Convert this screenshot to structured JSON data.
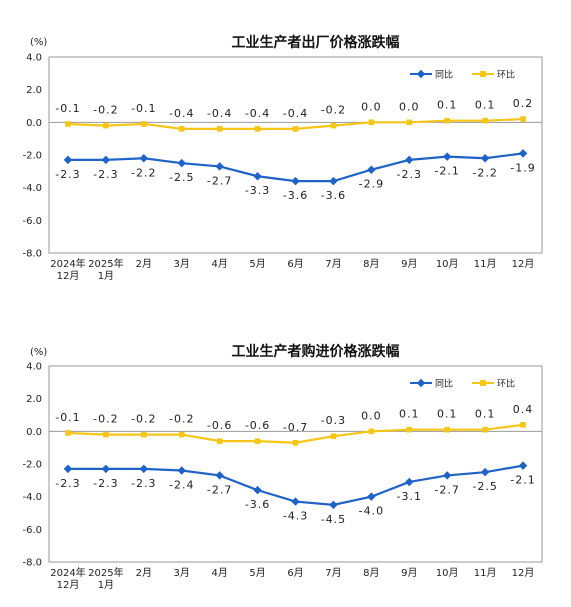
{
  "chart_data": [
    {
      "type": "line",
      "title": "工业生产者出厂价格涨跌幅",
      "unit_label": "(%)",
      "ylim": [
        -8.0,
        4.0
      ],
      "yticks": [
        "4.0",
        "2.0",
        "0.0",
        "-2.0",
        "-4.0",
        "-6.0",
        "-8.0"
      ],
      "ytick_values": [
        4,
        2,
        0,
        -2,
        -4,
        -6,
        -8
      ],
      "categories": [
        [
          "2024年",
          "12月"
        ],
        [
          "2025年",
          "1月"
        ],
        [
          "2月"
        ],
        [
          "3月"
        ],
        [
          "4月"
        ],
        [
          "5月"
        ],
        [
          "6月"
        ],
        [
          "7月"
        ],
        [
          "8月"
        ],
        [
          "9月"
        ],
        [
          "10月"
        ],
        [
          "11月"
        ],
        [
          "12月"
        ]
      ],
      "legend_position": "top-right",
      "series": [
        {
          "name": "同比",
          "color": "#1f63c6",
          "values": [
            -2.3,
            -2.3,
            -2.2,
            -2.5,
            -2.7,
            -3.3,
            -3.6,
            -3.6,
            -2.9,
            -2.3,
            -2.1,
            -2.2,
            -1.9
          ],
          "labels": [
            "-2.3",
            "-2.3",
            "-2.2",
            "-2.5",
            "-2.7",
            "-3.3",
            "-3.6",
            "-3.6",
            "-2.9",
            "-2.3",
            "-2.1",
            "-2.2",
            "-1.9"
          ]
        },
        {
          "name": "环比",
          "color": "#f5c518",
          "values": [
            -0.1,
            -0.2,
            -0.1,
            -0.4,
            -0.4,
            -0.4,
            -0.4,
            -0.2,
            0.0,
            0.0,
            0.1,
            0.1,
            0.2
          ],
          "labels": [
            "-0.1",
            "-0.2",
            "-0.1",
            "-0.4",
            "-0.4",
            "-0.4",
            "-0.4",
            "-0.2",
            "0.0",
            "0.0",
            "0.1",
            "0.1",
            "0.2"
          ]
        }
      ]
    },
    {
      "type": "line",
      "title": "工业生产者购进价格涨跌幅",
      "unit_label": "(%)",
      "ylim": [
        -8.0,
        4.0
      ],
      "yticks": [
        "4.0",
        "2.0",
        "0.0",
        "-2.0",
        "-4.0",
        "-6.0",
        "-8.0"
      ],
      "ytick_values": [
        4,
        2,
        0,
        -2,
        -4,
        -6,
        -8
      ],
      "categories": [
        [
          "2024年",
          "12月"
        ],
        [
          "2025年",
          "1月"
        ],
        [
          "2月"
        ],
        [
          "3月"
        ],
        [
          "4月"
        ],
        [
          "5月"
        ],
        [
          "6月"
        ],
        [
          "7月"
        ],
        [
          "8月"
        ],
        [
          "9月"
        ],
        [
          "10月"
        ],
        [
          "11月"
        ],
        [
          "12月"
        ]
      ],
      "legend_position": "top-right",
      "series": [
        {
          "name": "同比",
          "color": "#1f63c6",
          "values": [
            -2.3,
            -2.3,
            -2.3,
            -2.4,
            -2.7,
            -3.6,
            -4.3,
            -4.5,
            -4.0,
            -3.1,
            -2.7,
            -2.5,
            -2.1
          ],
          "labels": [
            "-2.3",
            "-2.3",
            "-2.3",
            "-2.4",
            "-2.7",
            "-3.6",
            "-4.3",
            "-4.5",
            "-4.0",
            "-3.1",
            "-2.7",
            "-2.5",
            "-2.1"
          ]
        },
        {
          "name": "环比",
          "color": "#f5c518",
          "values": [
            -0.1,
            -0.2,
            -0.2,
            -0.2,
            -0.6,
            -0.6,
            -0.7,
            -0.3,
            0.0,
            0.1,
            0.1,
            0.1,
            0.4
          ],
          "labels": [
            "-0.1",
            "-0.2",
            "-0.2",
            "-0.2",
            "-0.6",
            "-0.6",
            "-0.7",
            "-0.3",
            "0.0",
            "0.1",
            "0.1",
            "0.1",
            "0.4"
          ]
        }
      ]
    }
  ]
}
